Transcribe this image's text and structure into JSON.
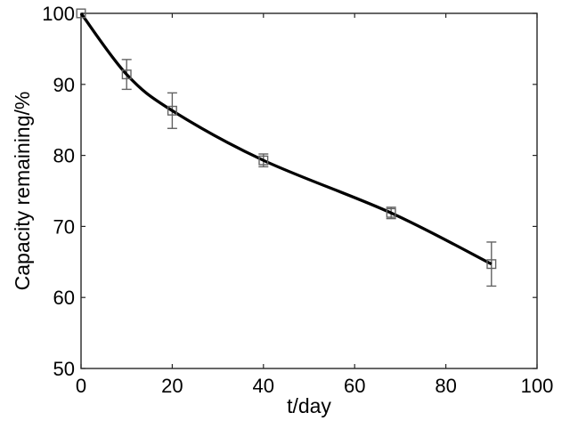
{
  "chart_data": {
    "type": "line",
    "title": "",
    "xlabel": "t/day",
    "ylabel": "Capacity remaining/%",
    "x": [
      0,
      10,
      20,
      40,
      68,
      90
    ],
    "series": [
      {
        "name": "capacity-remaining",
        "values": [
          100,
          91.4,
          86.3,
          79.3,
          71.9,
          64.7
        ],
        "yerr": [
          0,
          2.1,
          2.5,
          0.9,
          0.8,
          3.1
        ]
      }
    ],
    "xlim": [
      0,
      100
    ],
    "ylim": [
      50,
      100
    ],
    "xticks": [
      0,
      20,
      40,
      60,
      80,
      100
    ],
    "yticks": [
      50,
      60,
      70,
      80,
      90,
      100
    ],
    "grid": false,
    "legend_position": "none",
    "line_color": "#000000",
    "marker": "open-square",
    "marker_color": "#636363",
    "errorbar_color": "#636363",
    "axis_color": "#262626",
    "background_color": "#ffffff"
  }
}
